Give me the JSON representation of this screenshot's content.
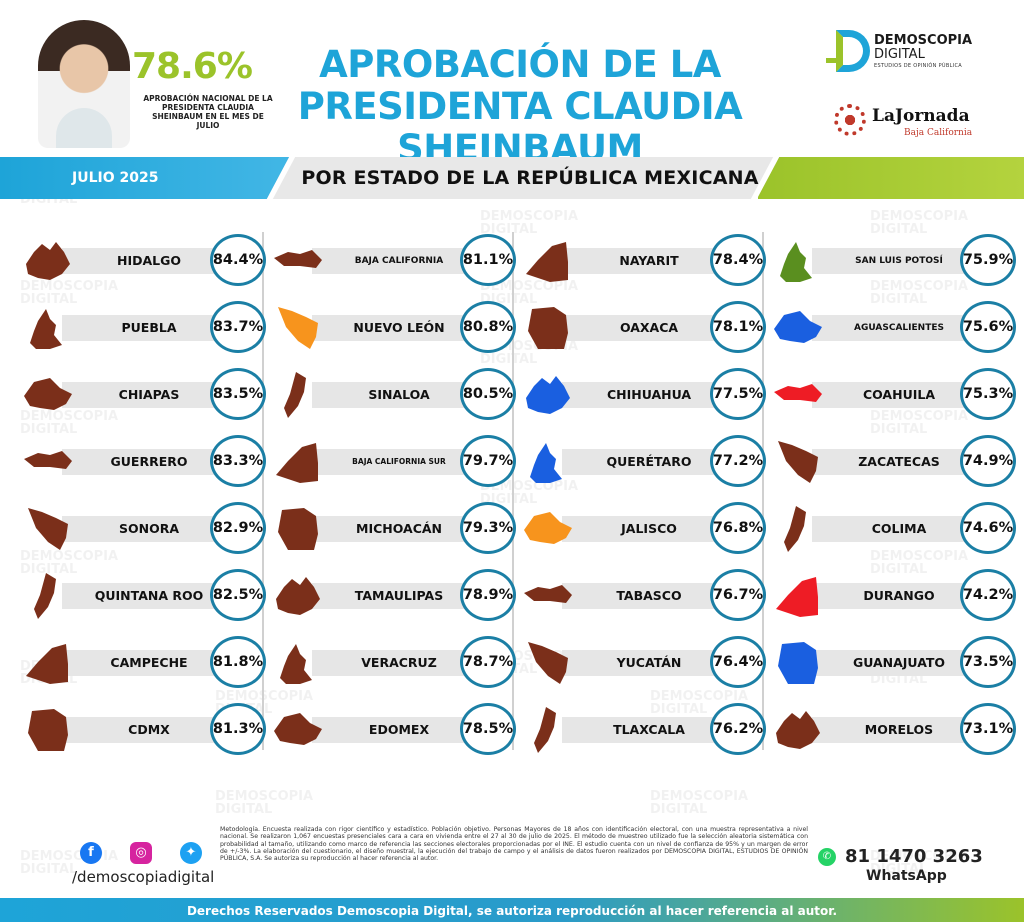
{
  "header": {
    "national_pct": "78.6%",
    "national_caption": "APROBACIÓN NACIONAL DE LA PRESIDENTA CLAUDIA SHEINBAUM EN EL MES DE JULIO",
    "title_line1": "APROBACIÓN DE LA",
    "title_line2": "PRESIDENTA CLAUDIA SHEINBAUM",
    "brand_line1": "DEMOSCOPIA",
    "brand_line2": "DIGITAL",
    "brand_tag": "ESTUDIOS DE OPINIÓN PÚBLICA",
    "partner_name": "LaJornada",
    "partner_sub": "Baja California"
  },
  "banner": {
    "period": "JULIO 2025",
    "subtitle": "POR ESTADO DE LA REPÚBLICA MEXICANA"
  },
  "watermark": {
    "line1": "DEMOSCOPIA",
    "line2": "DIGITAL"
  },
  "colors": {
    "brown": "#7b2f1a",
    "orange": "#f7941d",
    "blue": "#1a5fe0",
    "red": "#ee1c25",
    "green": "#5a8f1f",
    "ring": "#1b7fa5",
    "accent_blue": "#1ea4d8",
    "accent_green": "#9bc32a"
  },
  "states": [
    [
      {
        "name": "HIDALGO",
        "pct": "84.4%",
        "color": "brown"
      },
      {
        "name": "PUEBLA",
        "pct": "83.7%",
        "color": "brown"
      },
      {
        "name": "CHIAPAS",
        "pct": "83.5%",
        "color": "brown"
      },
      {
        "name": "GUERRERO",
        "pct": "83.3%",
        "color": "brown"
      },
      {
        "name": "SONORA",
        "pct": "82.9%",
        "color": "brown"
      },
      {
        "name": "QUINTANA ROO",
        "pct": "82.5%",
        "color": "brown"
      },
      {
        "name": "CAMPECHE",
        "pct": "81.8%",
        "color": "brown"
      },
      {
        "name": "CDMX",
        "pct": "81.3%",
        "color": "brown"
      }
    ],
    [
      {
        "name": "BAJA CALIFORNIA",
        "pct": "81.1%",
        "color": "brown"
      },
      {
        "name": "NUEVO LEÓN",
        "pct": "80.8%",
        "color": "orange"
      },
      {
        "name": "SINALOA",
        "pct": "80.5%",
        "color": "brown"
      },
      {
        "name": "BAJA CALIFORNIA SUR",
        "pct": "79.7%",
        "color": "brown"
      },
      {
        "name": "MICHOACÁN",
        "pct": "79.3%",
        "color": "brown"
      },
      {
        "name": "TAMAULIPAS",
        "pct": "78.9%",
        "color": "brown"
      },
      {
        "name": "VERACRUZ",
        "pct": "78.7%",
        "color": "brown"
      },
      {
        "name": "EDOMEX",
        "pct": "78.5%",
        "color": "brown"
      }
    ],
    [
      {
        "name": "NAYARIT",
        "pct": "78.4%",
        "color": "brown"
      },
      {
        "name": "OAXACA",
        "pct": "78.1%",
        "color": "brown"
      },
      {
        "name": "CHIHUAHUA",
        "pct": "77.5%",
        "color": "blue"
      },
      {
        "name": "QUERÉTARO",
        "pct": "77.2%",
        "color": "blue"
      },
      {
        "name": "JALISCO",
        "pct": "76.8%",
        "color": "orange"
      },
      {
        "name": "TABASCO",
        "pct": "76.7%",
        "color": "brown"
      },
      {
        "name": "YUCATÁN",
        "pct": "76.4%",
        "color": "brown"
      },
      {
        "name": "TLAXCALA",
        "pct": "76.2%",
        "color": "brown"
      }
    ],
    [
      {
        "name": "SAN LUIS POTOSÍ",
        "pct": "75.9%",
        "color": "green"
      },
      {
        "name": "AGUASCALIENTES",
        "pct": "75.6%",
        "color": "blue"
      },
      {
        "name": "COAHUILA",
        "pct": "75.3%",
        "color": "red"
      },
      {
        "name": "ZACATECAS",
        "pct": "74.9%",
        "color": "brown"
      },
      {
        "name": "COLIMA",
        "pct": "74.6%",
        "color": "brown"
      },
      {
        "name": "DURANGO",
        "pct": "74.2%",
        "color": "red"
      },
      {
        "name": "GUANAJUATO",
        "pct": "73.5%",
        "color": "blue"
      },
      {
        "name": "MORELOS",
        "pct": "73.1%",
        "color": "brown"
      }
    ]
  ],
  "footer": {
    "methodology": "Metodología. Encuesta realizada con rigor científico y estadístico. Población objetivo. Personas Mayores de 18 años con identificación electoral, con una muestra representativa a nivel nacional. Se realizaron 1,067 encuestas presenciales cara a cara en vivienda entre el 27 al 30 de julio de 2025. El método de muestreo utilizado fue la selección aleatoria sistemática con probabilidad al tamaño, utilizando como marco de referencia las secciones electorales proporcionadas por el INE. El estudio cuenta con un nivel de confianza de 95% y un margen de error de +/-3%. La elaboración del cuestionario, el diseño muestral, la ejecución del trabajo de campo y el análisis de datos fueron realizados por DEMOSCOPIA DIGITAL, ESTUDIOS DE OPINIÓN PÚBLICA, S.A. Se autoriza su reproducción al hacer referencia al autor.",
    "handle": "/demoscopiadigital",
    "phone": "81 1470 3263",
    "whatsapp": "WhatsApp",
    "rights": "Derechos Reservados Demoscopia Digital, se autoriza reproducción al hacer referencia al autor.",
    "icons": [
      "facebook-icon",
      "instagram-icon",
      "twitter-icon",
      "whatsapp-icon"
    ]
  }
}
